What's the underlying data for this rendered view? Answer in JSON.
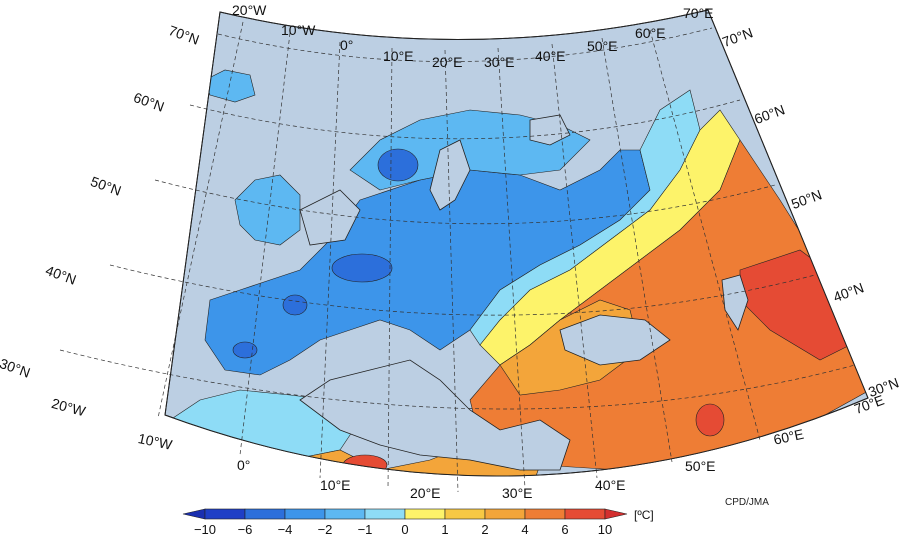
{
  "map": {
    "credit": "CPD/JMA",
    "unit": "[ºC]",
    "colors": {
      "ocean": "#bccfe3",
      "border": "#2a2a2a",
      "grid": "#333333"
    },
    "legend": {
      "ticks": [
        "−10",
        "−6",
        "−4",
        "−2",
        "−1",
        "0",
        "1",
        "2",
        "4",
        "6",
        "10"
      ],
      "colors": [
        "#1f3fc6",
        "#2c6fdb",
        "#3d95ea",
        "#5db8f2",
        "#8edcf6",
        "#fdf36a",
        "#f7c844",
        "#f3a53a",
        "#ee7d35",
        "#e54b34"
      ]
    },
    "lon_labels_top": [
      "20°W",
      "10°W",
      "0°",
      "10°E",
      "20°E",
      "30°E",
      "40°E",
      "50°E",
      "60°E",
      "70°E"
    ],
    "lon_labels_bottom": [
      "20°W",
      "10°W",
      "0°",
      "10°E",
      "20°E",
      "30°E",
      "40°E",
      "50°E",
      "60°E",
      "70°E"
    ],
    "lat_labels_left": [
      "70°N",
      "60°N",
      "50°N",
      "40°N",
      "30°N"
    ],
    "lat_labels_right": [
      "70°N",
      "60°N",
      "50°N",
      "40°N",
      "30°N"
    ]
  }
}
